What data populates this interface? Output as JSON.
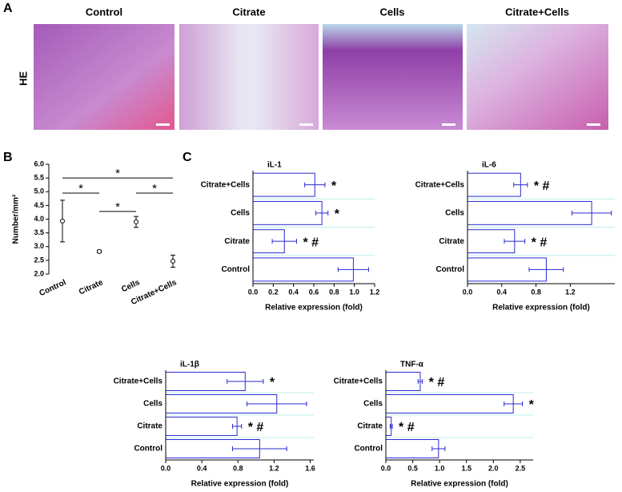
{
  "panel_labels": [
    "A",
    "B",
    "C"
  ],
  "panel_a": {
    "row_label": "HE",
    "columns": [
      "Control",
      "Citrate",
      "Cells",
      "Citrate+Cells"
    ]
  },
  "chart_data": [
    {
      "type": "errorbar",
      "y_label": "Number/mm²",
      "categories": [
        "Control",
        "Citrate",
        "Cells",
        "Citrate+Cells"
      ],
      "values": [
        3.93,
        2.82,
        3.9,
        2.47
      ],
      "errors": [
        0.76,
        0.05,
        0.2,
        0.22
      ],
      "color": "#000000",
      "ylim": [
        2.0,
        6.0
      ],
      "yticks": [
        {
          "value": 2,
          "label": "2.0"
        },
        {
          "value": 2.5,
          "label": "2.5"
        },
        {
          "value": 3,
          "label": "3.0"
        },
        {
          "value": 3.5,
          "label": "3.5"
        },
        {
          "value": 4,
          "label": "4.0"
        },
        {
          "value": 4.5,
          "label": "4.5"
        },
        {
          "value": 5,
          "label": "5.0"
        },
        {
          "value": 5.5,
          "label": "5.5"
        },
        {
          "value": 6,
          "label": "6.0"
        }
      ],
      "brackets": [
        {
          "from": 0,
          "to": 3,
          "y": 5.5,
          "label": "*"
        },
        {
          "from": 0,
          "to": 1,
          "y": 4.95,
          "label": "*"
        },
        {
          "from": 1,
          "to": 2,
          "y": 4.28,
          "label": "*"
        },
        {
          "from": 2,
          "to": 3,
          "y": 4.95,
          "label": "*"
        }
      ]
    },
    {
      "type": "hbar",
      "title": "iL-1",
      "x_label": "Relative expression (fold)",
      "categories": [
        "Control",
        "Citrate",
        "Cells",
        "Citrate+Cells"
      ],
      "values": [
        0.99,
        0.31,
        0.68,
        0.61
      ],
      "errors": [
        0.15,
        0.12,
        0.06,
        0.1
      ],
      "annotations": [
        null,
        "* #",
        "*",
        "*"
      ],
      "color": "#2a2ad0",
      "grid": true,
      "xlim": [
        0,
        1.2
      ],
      "xticks": [
        {
          "value": 0,
          "label": "0.0"
        },
        {
          "value": 0.2,
          "label": "0.2"
        },
        {
          "value": 0.4,
          "label": "0.4"
        },
        {
          "value": 0.6,
          "label": "0.6"
        },
        {
          "value": 0.8,
          "label": "0.8"
        },
        {
          "value": 1,
          "label": "1.0"
        },
        {
          "value": 1.2,
          "label": "1.2"
        }
      ]
    },
    {
      "type": "hbar",
      "title": "iL-6",
      "x_label": "Relative expression (fold)",
      "categories": [
        "Control",
        "Citrate",
        "Cells",
        "Citrate+Cells"
      ],
      "values": [
        0.92,
        0.55,
        1.45,
        0.62
      ],
      "errors": [
        0.2,
        0.12,
        0.23,
        0.08
      ],
      "annotations": [
        null,
        "* #",
        null,
        "* #"
      ],
      "color": "#2a2ad0",
      "grid": true,
      "xlim": [
        0,
        1.72
      ],
      "xticks": [
        {
          "value": 0,
          "label": "0.0"
        },
        {
          "value": 0.4,
          "label": "0.4"
        },
        {
          "value": 0.8,
          "label": "0.8"
        },
        {
          "value": 1.2,
          "label": "1.2"
        }
      ]
    },
    {
      "type": "hbar",
      "title": "iL-1β",
      "x_label": "Relative expression (fold)",
      "categories": [
        "Control",
        "Citrate",
        "Cells",
        "Citrate+Cells"
      ],
      "values": [
        1.04,
        0.79,
        1.23,
        0.88
      ],
      "errors": [
        0.3,
        0.05,
        0.33,
        0.2
      ],
      "annotations": [
        null,
        "* #",
        null,
        "*"
      ],
      "color": "#2a2ad0",
      "grid": true,
      "xlim": [
        0,
        1.64
      ],
      "xticks": [
        {
          "value": 0,
          "label": "0.0"
        },
        {
          "value": 0.4,
          "label": "0.4"
        },
        {
          "value": 0.8,
          "label": "0.8"
        },
        {
          "value": 1.2,
          "label": "1.2"
        },
        {
          "value": 1.6,
          "label": "1.6"
        }
      ]
    },
    {
      "type": "hbar",
      "title": "TNF-α",
      "x_label": "Relative expression (fold)",
      "categories": [
        "Control",
        "Citrate",
        "Cells",
        "Citrate+Cells"
      ],
      "values": [
        0.98,
        0.1,
        2.37,
        0.64
      ],
      "errors": [
        0.12,
        0.02,
        0.17,
        0.04
      ],
      "annotations": [
        null,
        "* #",
        "*",
        "* #"
      ],
      "color": "#2a2ad0",
      "grid": true,
      "xlim": [
        0,
        2.74
      ],
      "xticks": [
        {
          "value": 0,
          "label": "0.0"
        },
        {
          "value": 0.5,
          "label": "0.5"
        },
        {
          "value": 1,
          "label": "1.0"
        },
        {
          "value": 1.5,
          "label": "1.5"
        },
        {
          "value": 2,
          "label": "2.0"
        },
        {
          "value": 2.5,
          "label": "2.5"
        }
      ]
    }
  ]
}
